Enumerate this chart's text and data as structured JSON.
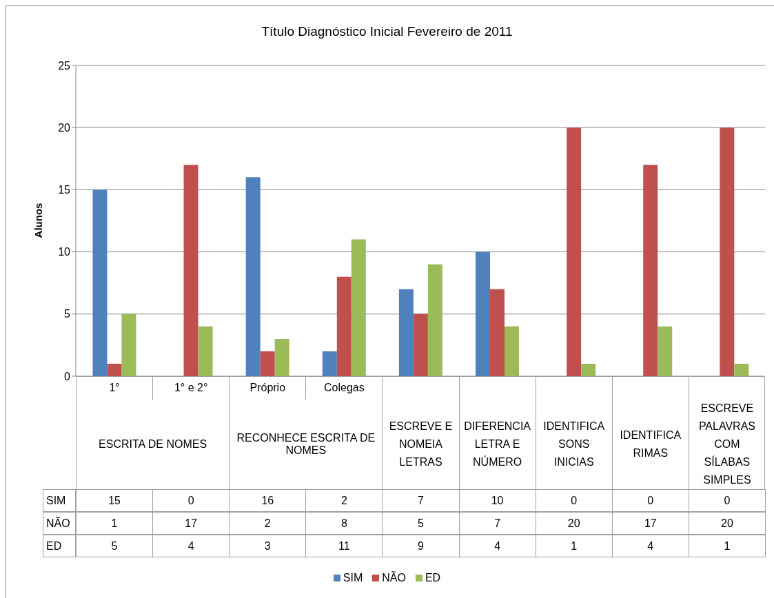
{
  "chart_data": {
    "type": "bar",
    "title": "Título Diagnóstico Inicial Fevereiro de 2011",
    "ylabel": "Alunos",
    "categories": [
      "1°",
      "1° e 2°",
      "Próprio",
      "Colegas",
      "ESCREVE E NOMEIA LETRAS",
      "DIFERENCIA LETRA E NÚMERO",
      "IDENTIFICA SONS INICIAS",
      "IDENTIFICA RIMAS",
      "ESCREVE PALAVRAS COM SÍLABAS SIMPLES"
    ],
    "annotations": [
      "ESCRITA DE NOMES",
      "RECONHECE ESCRITA DE NOMES"
    ],
    "series": [
      {
        "name": "SIM",
        "color": "#4f81bd",
        "values": [
          15,
          0,
          16,
          2,
          7,
          10,
          0,
          0,
          0
        ]
      },
      {
        "name": "NÃO",
        "color": "#c0504d",
        "values": [
          1,
          17,
          2,
          8,
          5,
          7,
          20,
          17,
          20
        ]
      },
      {
        "name": "ED",
        "color": "#9bbb59",
        "values": [
          5,
          4,
          3,
          11,
          9,
          4,
          1,
          4,
          1
        ]
      }
    ],
    "ylim": [
      0,
      25
    ],
    "yticks": [
      0,
      5,
      10,
      15,
      20,
      25
    ],
    "grid": "y",
    "legend": "bottom",
    "data_labels": true
  }
}
